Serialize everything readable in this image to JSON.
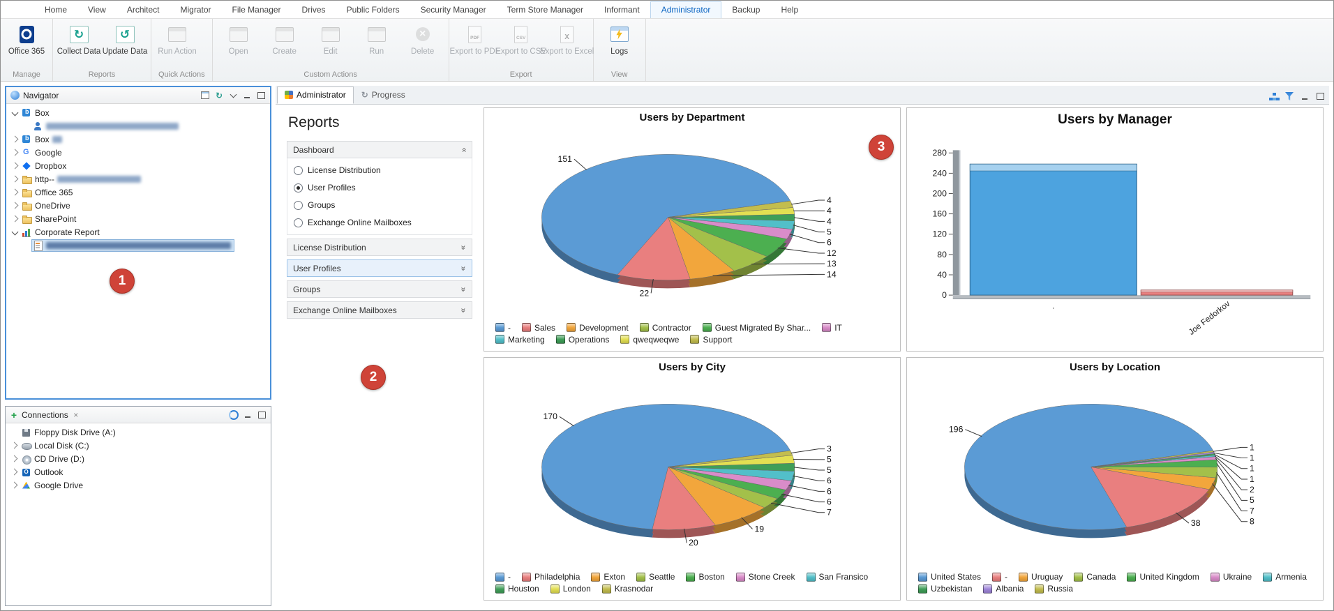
{
  "ribbon": {
    "tabs": [
      "Home",
      "View",
      "Architect",
      "Migrator",
      "File Manager",
      "Drives",
      "Public Folders",
      "Security Manager",
      "Term Store Manager",
      "Informant",
      "Administrator",
      "Backup",
      "Help"
    ],
    "active_tab": "Administrator",
    "groups": [
      {
        "label": "Manage",
        "buttons": [
          {
            "label": "Office 365",
            "icon": "office365-icon",
            "enabled": true
          }
        ]
      },
      {
        "label": "Reports",
        "buttons": [
          {
            "label": "Collect Data",
            "icon": "collect-data-icon",
            "enabled": true
          },
          {
            "label": "Update Data",
            "icon": "update-data-icon",
            "enabled": true
          }
        ]
      },
      {
        "label": "Quick Actions",
        "buttons": [
          {
            "label": "Run Action",
            "icon": "run-action-icon",
            "enabled": false
          }
        ]
      },
      {
        "label": "Custom Actions",
        "buttons": [
          {
            "label": "Open",
            "icon": "open-icon",
            "enabled": false
          },
          {
            "label": "Create",
            "icon": "create-icon",
            "enabled": false
          },
          {
            "label": "Edit",
            "icon": "edit-icon",
            "enabled": false
          },
          {
            "label": "Run",
            "icon": "run-icon",
            "enabled": false
          },
          {
            "label": "Delete",
            "icon": "delete-icon",
            "enabled": false
          }
        ]
      },
      {
        "label": "Export",
        "buttons": [
          {
            "label": "Export to PDF",
            "icon": "export-pdf-icon",
            "enabled": false
          },
          {
            "label": "Export to CSV",
            "icon": "export-csv-icon",
            "enabled": false
          },
          {
            "label": "Export to Excel",
            "icon": "export-excel-icon",
            "enabled": false
          }
        ]
      },
      {
        "label": "View",
        "buttons": [
          {
            "label": "Logs",
            "icon": "logs-icon",
            "enabled": true
          }
        ]
      }
    ]
  },
  "navigator": {
    "title": "Navigator",
    "header_buttons": [
      "new-window-icon",
      "refresh-icon",
      "chevron-down-icon",
      "minimize-icon",
      "maximize-icon"
    ],
    "items": [
      {
        "label": "Box",
        "icon": "box-icon",
        "level": 0,
        "state": "expanded"
      },
      {
        "label": "",
        "redacted_width": 190,
        "icon": "account-icon",
        "level": 1,
        "state": "leaf"
      },
      {
        "label": "Box",
        "redacted_width": 14,
        "icon": "box-icon",
        "level": 0,
        "state": "collapsed"
      },
      {
        "label": "Google",
        "icon": "google-icon",
        "level": 0,
        "state": "collapsed"
      },
      {
        "label": "Dropbox",
        "icon": "dropbox-icon",
        "level": 0,
        "state": "collapsed"
      },
      {
        "label": "http--",
        "redacted_width": 120,
        "icon": "folder-icon",
        "level": 0,
        "state": "collapsed"
      },
      {
        "label": "Office 365",
        "icon": "folder-icon",
        "level": 0,
        "state": "collapsed"
      },
      {
        "label": "OneDrive",
        "icon": "folder-icon",
        "level": 0,
        "state": "collapsed"
      },
      {
        "label": "SharePoint",
        "icon": "folder-icon",
        "level": 0,
        "state": "collapsed"
      },
      {
        "label": "Corporate Report",
        "icon": "report-icon",
        "level": 0,
        "state": "expanded"
      },
      {
        "label": "",
        "redacted_width": 265,
        "icon": "document-icon",
        "level": 1,
        "state": "leaf",
        "selected": true
      }
    ]
  },
  "connections": {
    "title": "Connections",
    "header_buttons": [
      "sync-blue-icon",
      "minimize-icon",
      "maximize-icon"
    ],
    "items": [
      {
        "label": "Floppy Disk Drive (A:)",
        "icon": "floppy-icon",
        "level": 0,
        "state": "leaf"
      },
      {
        "label": "Local Disk (C:)",
        "icon": "disk-icon",
        "level": 0,
        "state": "collapsed"
      },
      {
        "label": "CD Drive (D:)",
        "icon": "cd-icon",
        "level": 0,
        "state": "collapsed"
      },
      {
        "label": "Outlook",
        "icon": "outlook-icon",
        "level": 0,
        "state": "collapsed"
      },
      {
        "label": "Google Drive",
        "icon": "gdrive-icon",
        "level": 0,
        "state": "collapsed"
      }
    ]
  },
  "main": {
    "tabs": [
      {
        "label": "Administrator",
        "icon": "report-tab-icon",
        "active": true
      },
      {
        "label": "Progress",
        "icon": "progress-icon",
        "active": false
      }
    ],
    "toolbar_icons": [
      "hierarchy-icon",
      "filter-icon",
      "minimize-icon",
      "maximize-icon"
    ]
  },
  "reports_panel": {
    "title": "Reports",
    "sections": [
      {
        "label": "Dashboard",
        "expanded": true,
        "options": [
          {
            "label": "License Distribution",
            "selected": false
          },
          {
            "label": "User Profiles",
            "selected": true
          },
          {
            "label": "Groups",
            "selected": false
          },
          {
            "label": "Exchange Online Mailboxes",
            "selected": false
          }
        ]
      },
      {
        "label": "License Distribution",
        "expanded": false
      },
      {
        "label": "User Profiles",
        "expanded": false,
        "focused": true
      },
      {
        "label": "Groups",
        "expanded": false
      },
      {
        "label": "Exchange Online Mailboxes",
        "expanded": false
      }
    ]
  },
  "annotations": [
    {
      "label": "1"
    },
    {
      "label": "2"
    },
    {
      "label": "3"
    }
  ],
  "chart_data": [
    {
      "type": "pie",
      "title": "Users by Department",
      "categories": [
        "-",
        "Sales",
        "Development",
        "Contractor",
        "Guest Migrated By Shar...",
        "IT",
        "Marketing",
        "Operations",
        "qweqweqwe",
        "Support"
      ],
      "values": [
        151,
        22,
        14,
        13,
        12,
        6,
        5,
        4,
        4,
        4
      ],
      "colors": [
        "#5b9bd5",
        "#e97f7f",
        "#f2a63c",
        "#a3c04a",
        "#4caf50",
        "#d98cc9",
        "#52bfc9",
        "#3f9e58",
        "#e3df52",
        "#c3bd4e"
      ],
      "legend_position": "bottom"
    },
    {
      "type": "bar",
      "title": "Users by Manager",
      "categories": [
        ".",
        "Joe Fedorkov"
      ],
      "values": [
        258,
        10
      ],
      "colors": [
        "#4da3df",
        "#e87f7f"
      ],
      "ylim": [
        0,
        280
      ],
      "ytick_step": 40,
      "legend_position": "none"
    },
    {
      "type": "pie",
      "title": "Users by City",
      "categories": [
        "-",
        "Philadelphia",
        "Exton",
        "Seattle",
        "Boston",
        "Stone Creek",
        "San Fransico",
        "Houston",
        "London",
        "Krasnodar"
      ],
      "values": [
        170,
        20,
        19,
        7,
        6,
        6,
        6,
        5,
        5,
        3
      ],
      "colors": [
        "#5b9bd5",
        "#e97f7f",
        "#f2a63c",
        "#a3c04a",
        "#4caf50",
        "#d98cc9",
        "#52bfc9",
        "#3f9e58",
        "#e3df52",
        "#c3bd4e"
      ],
      "legend_position": "bottom"
    },
    {
      "type": "pie",
      "title": "Users by Location",
      "categories": [
        "United States",
        "-",
        "Uruguay",
        "Canada",
        "United Kingdom",
        "Ukraine",
        "Armenia",
        "Uzbekistan",
        "Albania",
        "Russia"
      ],
      "values": [
        196,
        38,
        8,
        7,
        5,
        2,
        1,
        1,
        1,
        1
      ],
      "colors": [
        "#5b9bd5",
        "#e97f7f",
        "#f2a63c",
        "#a3c04a",
        "#4caf50",
        "#d98cc9",
        "#52bfc9",
        "#3f9e58",
        "#9f86d9",
        "#c3bd4e"
      ],
      "legend_position": "bottom"
    }
  ]
}
